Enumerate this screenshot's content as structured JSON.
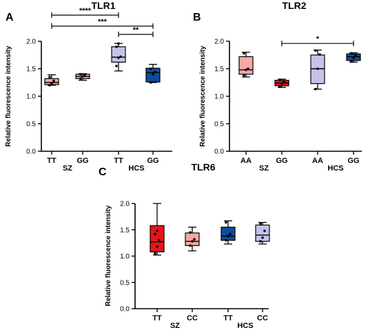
{
  "colors": {
    "sz_light": "#f4a7a7",
    "sz_dark": "#e8131b",
    "hcs_light": "#c5c2ea",
    "hcs_dark": "#0f4c9a",
    "axis": "#000000"
  },
  "chart_data": [
    {
      "type": "box",
      "panel_letter": "A",
      "title": "TLR1",
      "ylabel": "Relative fluorescence intensity",
      "ylim": [
        0,
        2.0
      ],
      "yticks": [
        "0.0",
        "0.5",
        "1.0",
        "1.5",
        "2.0"
      ],
      "yticks_values": [
        0,
        0.5,
        1.0,
        1.5,
        2.0
      ],
      "categories": [
        "TT",
        "GG",
        "TT",
        "GG"
      ],
      "groups": [
        {
          "label": "SZ",
          "span": [
            0,
            1
          ]
        },
        {
          "label": "HCS",
          "span": [
            2,
            3
          ]
        }
      ],
      "boxes": [
        {
          "category": "TT",
          "group": "SZ",
          "color_key": "sz_light",
          "min": 1.2,
          "q1": 1.21,
          "median": 1.25,
          "q3": 1.32,
          "max": 1.39,
          "points": [
            1.2,
            1.23,
            1.28,
            1.35
          ]
        },
        {
          "category": "GG",
          "group": "SZ",
          "color_key": "sz_light",
          "min": 1.29,
          "q1": 1.32,
          "median": 1.36,
          "q3": 1.4,
          "max": 1.41,
          "points": [
            1.32,
            1.36,
            1.39,
            1.4
          ]
        },
        {
          "category": "TT",
          "group": "HCS",
          "color_key": "hcs_light",
          "min": 1.46,
          "q1": 1.62,
          "median": 1.71,
          "q3": 1.9,
          "max": 1.96,
          "points": [
            1.55,
            1.7,
            1.72,
            1.9,
            1.96
          ]
        },
        {
          "category": "GG",
          "group": "HCS",
          "color_key": "hcs_dark",
          "min": 1.25,
          "q1": 1.26,
          "median": 1.43,
          "q3": 1.51,
          "max": 1.58,
          "points": [
            1.25,
            1.4,
            1.44,
            1.5
          ]
        }
      ],
      "significance": [
        {
          "from": 0,
          "to": 2,
          "label": "****"
        },
        {
          "from": 0,
          "to": 3,
          "label": "***"
        },
        {
          "from": 2,
          "to": 3,
          "label": "**"
        }
      ]
    },
    {
      "type": "box",
      "panel_letter": "B",
      "title": "TLR2",
      "ylabel": "Relative fluorescence intensity",
      "ylim": [
        0,
        2.0
      ],
      "yticks": [
        "0.0",
        "0.5",
        "1.0",
        "1.5",
        "2.0"
      ],
      "yticks_values": [
        0,
        0.5,
        1.0,
        1.5,
        2.0
      ],
      "categories": [
        "AA",
        "GG",
        "AA",
        "GG"
      ],
      "groups": [
        {
          "label": "SZ",
          "span": [
            0,
            1
          ]
        },
        {
          "label": "HCS",
          "span": [
            2,
            3
          ]
        }
      ],
      "boxes": [
        {
          "category": "AA",
          "group": "SZ",
          "color_key": "sz_light",
          "min": 1.35,
          "q1": 1.4,
          "median": 1.48,
          "q3": 1.72,
          "max": 1.8,
          "points": [
            1.38,
            1.48,
            1.5,
            1.78
          ]
        },
        {
          "category": "GG",
          "group": "SZ",
          "color_key": "sz_dark",
          "min": 1.16,
          "q1": 1.19,
          "median": 1.24,
          "q3": 1.29,
          "max": 1.31,
          "points": [
            1.18,
            1.23,
            1.26,
            1.3
          ]
        },
        {
          "category": "AA",
          "group": "HCS",
          "color_key": "hcs_light",
          "min": 1.13,
          "q1": 1.23,
          "median": 1.5,
          "q3": 1.75,
          "max": 1.84,
          "points": [
            1.13,
            1.5,
            1.76,
            1.83
          ]
        },
        {
          "category": "GG",
          "group": "HCS",
          "color_key": "hcs_dark",
          "min": 1.62,
          "q1": 1.65,
          "median": 1.72,
          "q3": 1.77,
          "max": 1.79,
          "points": [
            1.64,
            1.7,
            1.74,
            1.78
          ]
        }
      ],
      "significance": [
        {
          "from": 1,
          "to": 3,
          "label": "*"
        }
      ]
    },
    {
      "type": "box",
      "panel_letter": "C",
      "title": "TLR6",
      "ylabel": "Relative fluorescence intensity",
      "ylim": [
        0,
        2.0
      ],
      "yticks": [
        "0.0",
        "0.5",
        "1.0",
        "1.5",
        "2.0"
      ],
      "yticks_values": [
        0,
        0.5,
        1.0,
        1.5,
        2.0
      ],
      "categories": [
        "TT",
        "CC",
        "TT",
        "CC"
      ],
      "groups": [
        {
          "label": "SZ",
          "span": [
            0,
            1
          ]
        },
        {
          "label": "HCS",
          "span": [
            2,
            3
          ]
        }
      ],
      "boxes": [
        {
          "category": "TT",
          "group": "SZ",
          "color_key": "sz_dark",
          "min": 1.02,
          "q1": 1.08,
          "median": 1.27,
          "q3": 1.58,
          "max": 2.0,
          "points": [
            1.05,
            1.18,
            1.3,
            1.42,
            1.48
          ]
        },
        {
          "category": "CC",
          "group": "SZ",
          "color_key": "sz_light",
          "min": 1.1,
          "q1": 1.2,
          "median": 1.28,
          "q3": 1.44,
          "max": 1.55,
          "points": [
            1.2,
            1.28,
            1.32,
            1.45
          ]
        },
        {
          "category": "TT",
          "group": "HCS",
          "color_key": "hcs_dark",
          "min": 1.23,
          "q1": 1.3,
          "median": 1.38,
          "q3": 1.55,
          "max": 1.67,
          "points": [
            1.3,
            1.38,
            1.42,
            1.64
          ]
        },
        {
          "category": "CC",
          "group": "HCS",
          "color_key": "hcs_light",
          "min": 1.23,
          "q1": 1.28,
          "median": 1.4,
          "q3": 1.59,
          "max": 1.64,
          "points": [
            1.28,
            1.35,
            1.48,
            1.62
          ]
        }
      ],
      "significance": []
    }
  ]
}
